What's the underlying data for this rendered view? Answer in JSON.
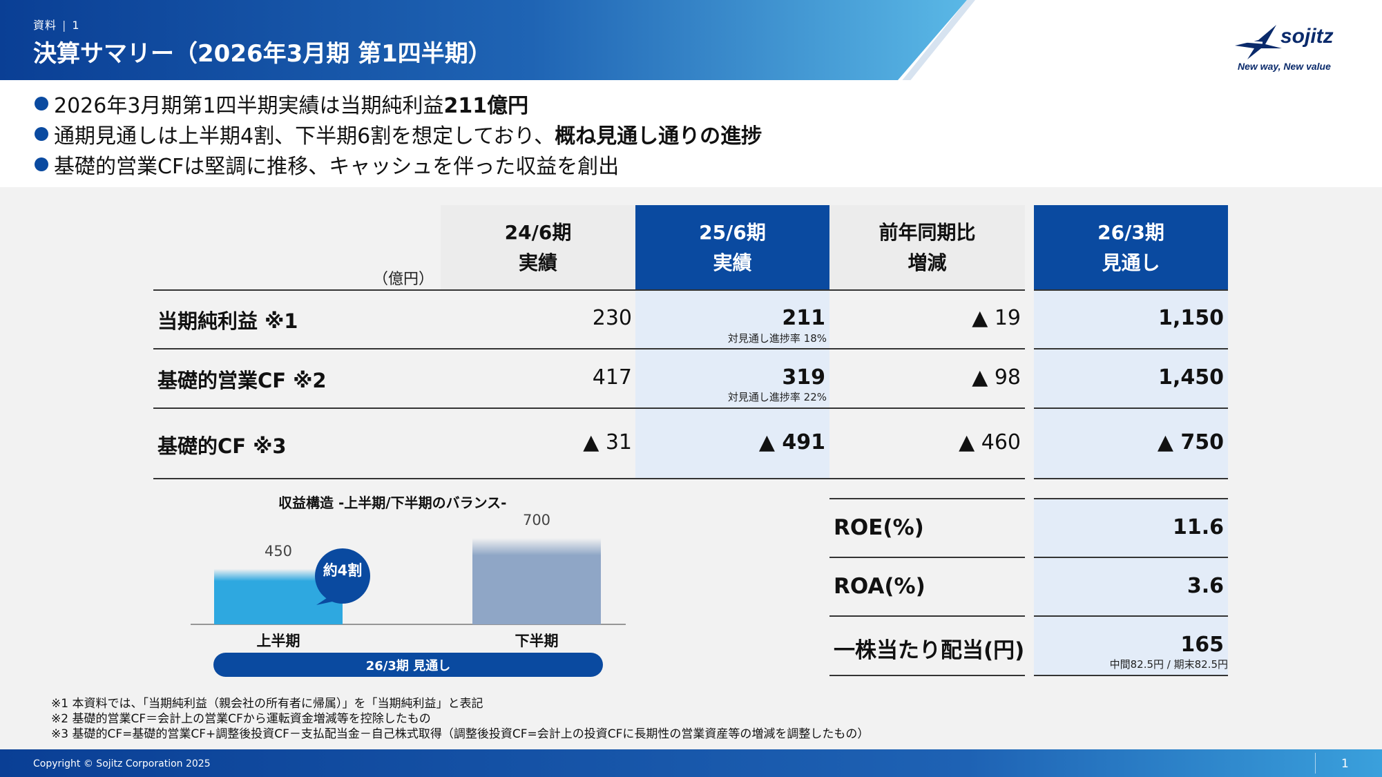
{
  "header": {
    "section": "資料",
    "page_ref": "1",
    "title": "決算サマリー（2026年3月期 第1四半期）"
  },
  "logo": {
    "wordmark": "sojitz",
    "tagline": "New way, New value"
  },
  "bullets": [
    {
      "text": "2026年3月期第1四半期実績は当期純利益",
      "bold": "211億円"
    },
    {
      "text": "通期見通しは上半期4割、下半期6割を想定しており、",
      "bold": "概ね見通し通りの進捗"
    },
    {
      "text": "基礎的営業CFは堅調に推移、キャッシュを伴った収益を創出",
      "bold": ""
    }
  ],
  "table": {
    "unit": "（億円）",
    "columns": [
      {
        "line1": "24/6期",
        "line2": "実績"
      },
      {
        "line1": "25/6期",
        "line2": "実績"
      },
      {
        "line1": "前年同期比",
        "line2": "増減"
      },
      {
        "line1": "26/3期",
        "line2": "見通し"
      }
    ],
    "rows": [
      {
        "label": "当期純利益 ※1",
        "prev": "230",
        "curr": "211",
        "curr_note": "対見通し進捗率 18%",
        "diff": "▲ 19",
        "forecast": "1,150"
      },
      {
        "label": "基礎的営業CF ※2",
        "prev": "417",
        "curr": "319",
        "curr_note": "対見通し進捗率 22%",
        "diff": "▲ 98",
        "forecast": "1,450"
      },
      {
        "label": "基礎的CF ※3",
        "prev": "▲ 31",
        "curr": "▲ 491",
        "curr_note": "",
        "diff": "▲ 460",
        "forecast": "▲ 750"
      }
    ]
  },
  "ratios": [
    {
      "label": "ROE(%)",
      "value": "11.6",
      "note": ""
    },
    {
      "label": "ROA(%)",
      "value": "3.6",
      "note": ""
    },
    {
      "label": "一株当たり配当(円)",
      "value": "165",
      "note": "中間82.5円 / 期末82.5円"
    }
  ],
  "chart_data": {
    "type": "bar",
    "title": "収益構造 -上半期/下半期のバランス-",
    "categories": [
      "上半期",
      "下半期"
    ],
    "values": [
      450,
      700
    ],
    "ylim": [
      0,
      800
    ],
    "colors": [
      "#2ea8e0",
      "#8fa6c6"
    ],
    "callout": "約4割",
    "footer_label": "26/3期 見通し"
  },
  "footnotes": [
    "※1 本資料では、「当期純利益（親会社の所有者に帰属）」を「当期純利益」と表記",
    "※2 基礎的営業CF＝会計上の営業CFから運転資金増減等を控除したもの",
    "※3 基礎的CF=基礎的営業CF+調整後投資CF－支払配当金－自己株式取得（調整後投資CF=会計上の投資CFに長期性の営業資産等の増減を調整したもの）"
  ],
  "footer": {
    "copyright": "Copyright © Sojitz Corporation 2025",
    "page_number": "1"
  },
  "colors": {
    "brand_blue": "#0a4aa0",
    "highlight_bg": "#e3ecf8",
    "panel_bg": "#f2f2f2"
  }
}
